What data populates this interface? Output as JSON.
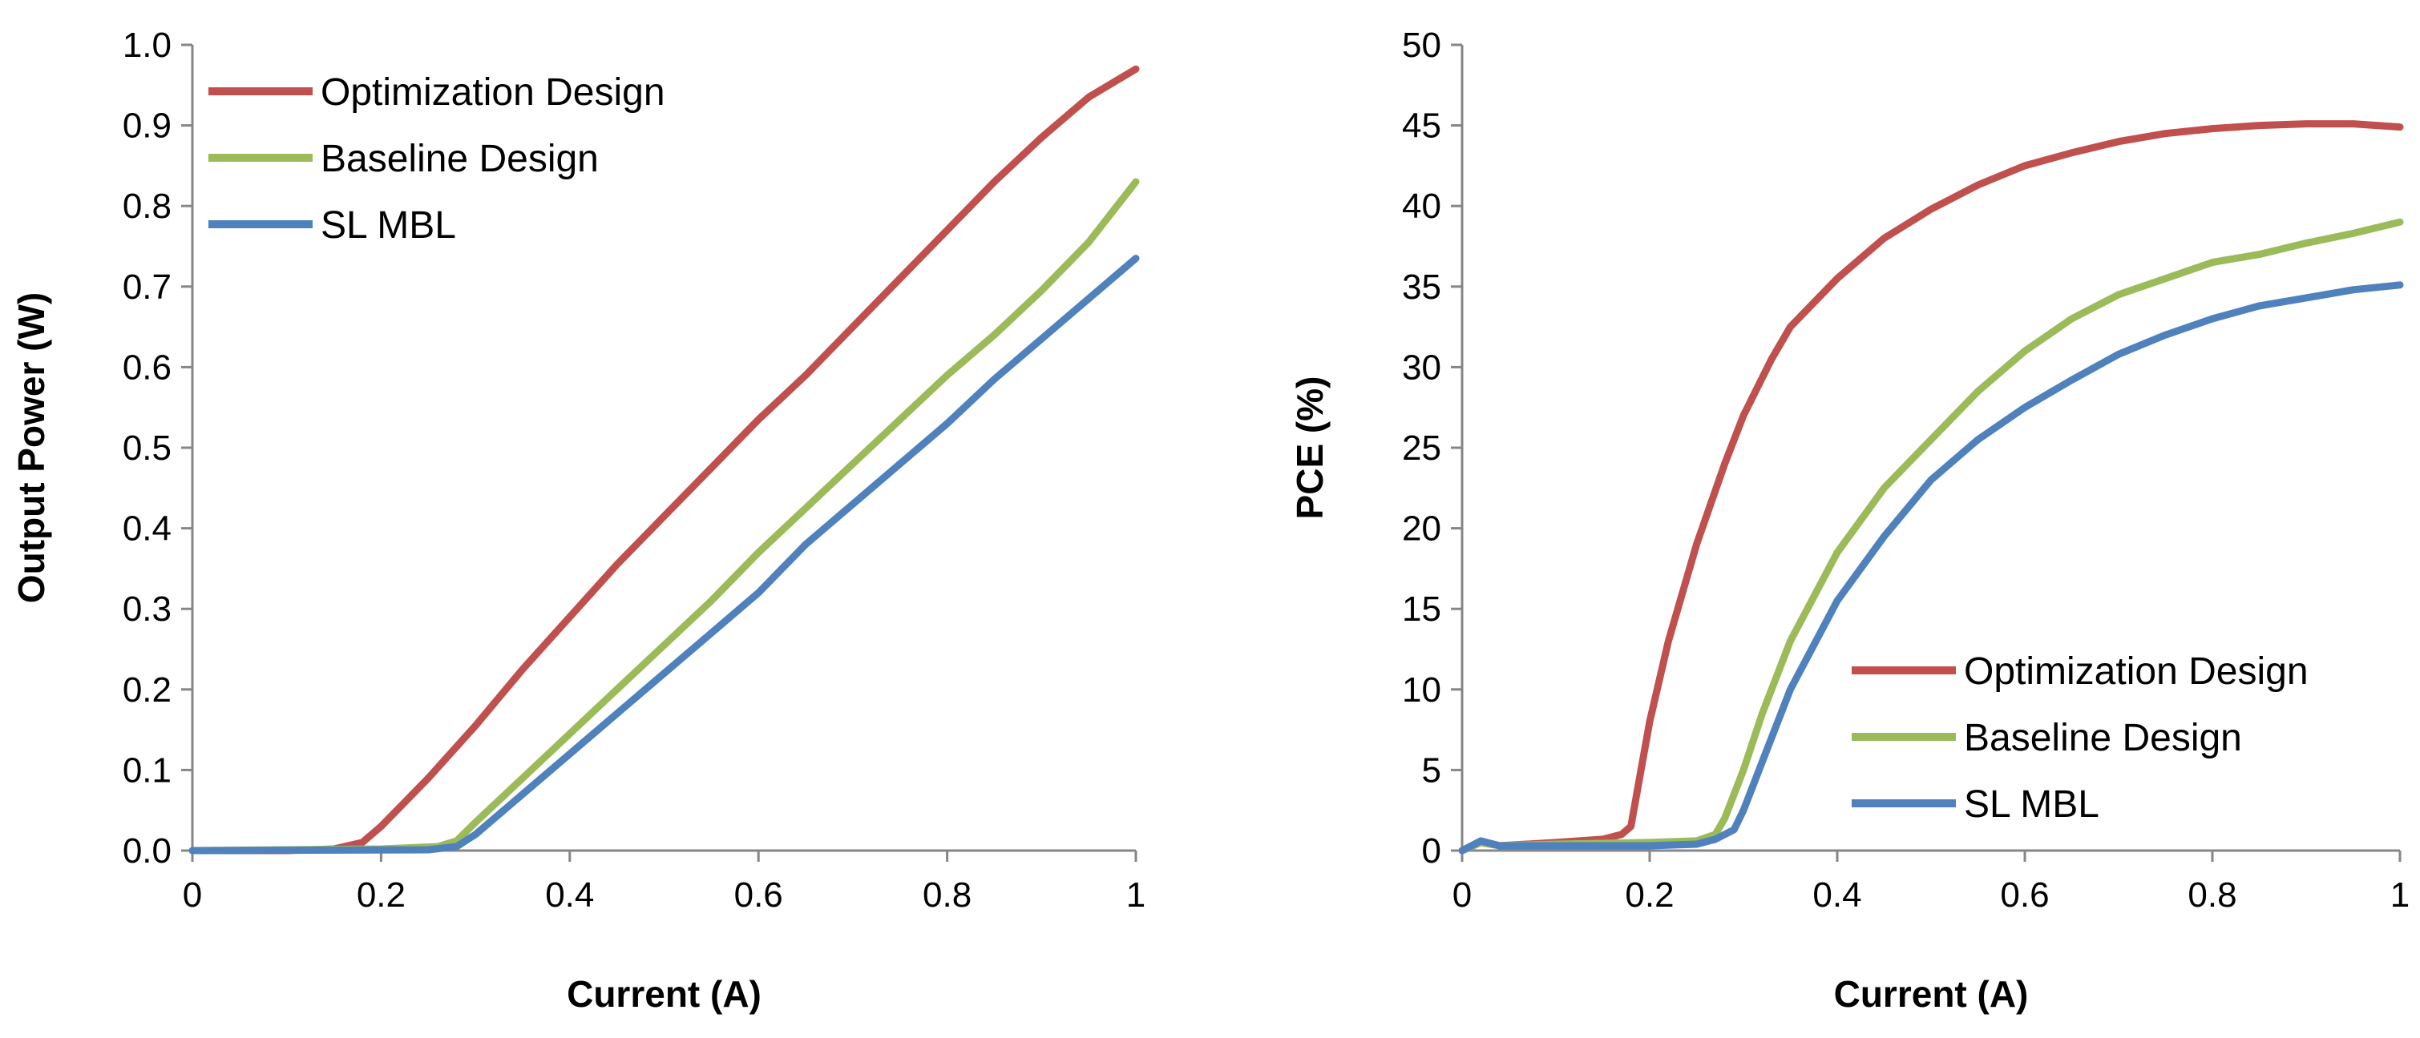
{
  "chart_data": [
    {
      "type": "line",
      "title": "",
      "xlabel": "Current (A)",
      "ylabel": "Output Power (W)",
      "xlim": [
        0,
        1
      ],
      "ylim": [
        0,
        1.0
      ],
      "grid": false,
      "legend_position": "top-left",
      "x_ticks": [
        "0",
        "0.2",
        "0.4",
        "0.6",
        "0.8",
        "1"
      ],
      "x_tick_values": [
        0,
        0.2,
        0.4,
        0.6,
        0.8,
        1
      ],
      "y_ticks": [
        "0.0",
        "0.1",
        "0.2",
        "0.3",
        "0.4",
        "0.5",
        "0.6",
        "0.7",
        "0.8",
        "0.9",
        "1.0"
      ],
      "y_tick_values": [
        0,
        0.1,
        0.2,
        0.3,
        0.4,
        0.5,
        0.6,
        0.7,
        0.8,
        0.9,
        1.0
      ],
      "series": [
        {
          "name": "Optimization Design",
          "color": "#C0504D",
          "x": [
            0,
            0.1,
            0.15,
            0.18,
            0.2,
            0.25,
            0.3,
            0.35,
            0.4,
            0.45,
            0.5,
            0.55,
            0.6,
            0.65,
            0.7,
            0.75,
            0.8,
            0.85,
            0.9,
            0.95,
            1.0
          ],
          "y": [
            0,
            0,
            0.002,
            0.01,
            0.03,
            0.09,
            0.155,
            0.225,
            0.29,
            0.355,
            0.415,
            0.475,
            0.535,
            0.59,
            0.65,
            0.71,
            0.77,
            0.83,
            0.885,
            0.935,
            0.97
          ]
        },
        {
          "name": "Baseline Design",
          "color": "#9BBB59",
          "x": [
            0,
            0.2,
            0.26,
            0.28,
            0.3,
            0.35,
            0.4,
            0.45,
            0.5,
            0.55,
            0.6,
            0.65,
            0.7,
            0.75,
            0.8,
            0.85,
            0.9,
            0.95,
            1.0
          ],
          "y": [
            0,
            0.002,
            0.005,
            0.012,
            0.035,
            0.09,
            0.145,
            0.2,
            0.255,
            0.31,
            0.37,
            0.425,
            0.48,
            0.535,
            0.59,
            0.64,
            0.695,
            0.755,
            0.83
          ]
        },
        {
          "name": "SL MBL",
          "color": "#4F81BD",
          "x": [
            0,
            0.25,
            0.28,
            0.3,
            0.35,
            0.4,
            0.45,
            0.5,
            0.55,
            0.6,
            0.65,
            0.7,
            0.75,
            0.8,
            0.85,
            0.9,
            0.95,
            1.0
          ],
          "y": [
            0,
            0.001,
            0.005,
            0.02,
            0.07,
            0.12,
            0.17,
            0.22,
            0.27,
            0.32,
            0.38,
            0.43,
            0.48,
            0.53,
            0.585,
            0.635,
            0.685,
            0.735
          ]
        }
      ]
    },
    {
      "type": "line",
      "title": "",
      "xlabel": "Current (A)",
      "ylabel": "PCE (%)",
      "xlim": [
        0,
        1
      ],
      "ylim": [
        0,
        50
      ],
      "grid": false,
      "legend_position": "bottom-right",
      "x_ticks": [
        "0",
        "0.2",
        "0.4",
        "0.6",
        "0.8",
        "1"
      ],
      "x_tick_values": [
        0,
        0.2,
        0.4,
        0.6,
        0.8,
        1
      ],
      "y_ticks": [
        "0",
        "5",
        "10",
        "15",
        "20",
        "25",
        "30",
        "35",
        "40",
        "45",
        "50"
      ],
      "y_tick_values": [
        0,
        5,
        10,
        15,
        20,
        25,
        30,
        35,
        40,
        45,
        50
      ],
      "series": [
        {
          "name": "Optimization Design",
          "color": "#C0504D",
          "x": [
            0,
            0.02,
            0.04,
            0.1,
            0.15,
            0.17,
            0.18,
            0.2,
            0.22,
            0.25,
            0.28,
            0.3,
            0.33,
            0.35,
            0.4,
            0.45,
            0.5,
            0.55,
            0.6,
            0.65,
            0.7,
            0.75,
            0.8,
            0.85,
            0.9,
            0.95,
            1.0
          ],
          "y": [
            0,
            0.5,
            0.3,
            0.5,
            0.7,
            1.0,
            1.5,
            8,
            13,
            19,
            24,
            27,
            30.5,
            32.5,
            35.5,
            38,
            39.8,
            41.3,
            42.5,
            43.3,
            44,
            44.5,
            44.8,
            45,
            45.1,
            45.1,
            44.9
          ]
        },
        {
          "name": "Baseline Design",
          "color": "#9BBB59",
          "x": [
            0,
            0.02,
            0.04,
            0.1,
            0.2,
            0.25,
            0.27,
            0.28,
            0.3,
            0.32,
            0.35,
            0.4,
            0.45,
            0.5,
            0.55,
            0.6,
            0.65,
            0.7,
            0.75,
            0.8,
            0.85,
            0.9,
            0.95,
            1.0
          ],
          "y": [
            0,
            0.5,
            0.3,
            0.4,
            0.5,
            0.6,
            1.0,
            2.0,
            5.0,
            8.5,
            13,
            18.5,
            22.5,
            25.5,
            28.5,
            31,
            33,
            34.5,
            35.5,
            36.5,
            37,
            37.7,
            38.3,
            39
          ]
        },
        {
          "name": "SL MBL",
          "color": "#4F81BD",
          "x": [
            0,
            0.02,
            0.04,
            0.1,
            0.2,
            0.25,
            0.27,
            0.29,
            0.3,
            0.32,
            0.35,
            0.4,
            0.45,
            0.5,
            0.55,
            0.6,
            0.65,
            0.7,
            0.75,
            0.8,
            0.85,
            0.9,
            0.95,
            1.0
          ],
          "y": [
            0,
            0.6,
            0.3,
            0.3,
            0.3,
            0.4,
            0.7,
            1.3,
            2.5,
            5.5,
            10,
            15.5,
            19.5,
            23,
            25.5,
            27.5,
            29.2,
            30.8,
            32,
            33,
            33.8,
            34.3,
            34.8,
            35.1
          ]
        }
      ]
    }
  ]
}
